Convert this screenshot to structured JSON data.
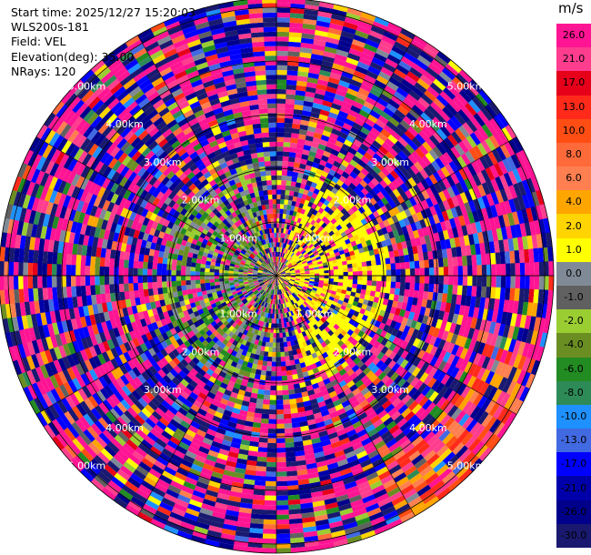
{
  "info": {
    "start_time": "Start time: 2025/12/27 15:20:03",
    "instrument": "WLS200s-181",
    "field": "Field: VEL",
    "elevation": "Elevation(deg): 35.00",
    "nrays": "NRays: 120"
  },
  "chart_data": {
    "type": "heatmap",
    "projection": "polar PPI",
    "field": "VEL",
    "n_rays": 120,
    "range_rings_km": [
      1,
      2,
      3,
      4,
      5
    ],
    "range_ring_labels": [
      "1.00km",
      "2.00km",
      "3.00km",
      "4.00km",
      "5.00km"
    ],
    "colorbar": {
      "unit": "m/s",
      "ticks": [
        "26.0",
        "21.0",
        "17.0",
        "13.0",
        "10.0",
        "8.0",
        "6.0",
        "4.0",
        "2.0",
        "1.0",
        "0.0",
        "-1.0",
        "-2.0",
        "-4.0",
        "-6.0",
        "-8.0",
        "-10.0",
        "-13.0",
        "-17.0",
        "-21.0",
        "-26.0",
        "-30.0"
      ],
      "colors": [
        "#ff1493",
        "#ff3d8f",
        "#e6001a",
        "#ff2a1a",
        "#ff4d14",
        "#ff6a3a",
        "#ff7f50",
        "#ffa500",
        "#ffd400",
        "#ffff00",
        "#808a96",
        "#606060",
        "#9acd32",
        "#6b8e23",
        "#228b22",
        "#2e8b57",
        "#1e90ff",
        "#4169e1",
        "#0000ff",
        "#0000aa",
        "#00008b",
        "#191970"
      ]
    }
  }
}
